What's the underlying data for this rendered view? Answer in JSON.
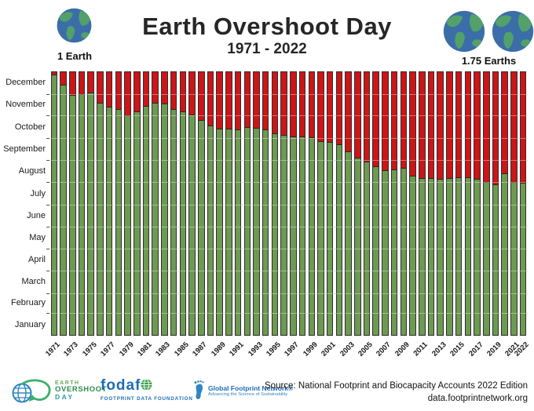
{
  "header": {
    "title": "Earth Overshoot Day",
    "subtitle": "1971 - 2022",
    "left_earths_label": "1 Earth",
    "right_earths_label": "1.75 Earths"
  },
  "chart_data": {
    "type": "bar",
    "stacked": true,
    "title": "Earth Overshoot Day 1971 - 2022",
    "description": "Stacked bars per year: green = days of the year before Earth Overshoot Day, red = overshoot days after it",
    "year_start": 1971,
    "year_end": 2022,
    "dates": [
      "Dec 25",
      "Dec 10",
      "Nov 26",
      "Nov 27",
      "Nov 30",
      "Nov 16",
      "Nov 10",
      "Nov 7",
      "Oct 29",
      "Nov 4",
      "Nov 11",
      "Nov 15",
      "Nov 14",
      "Nov 7",
      "Nov 4",
      "Oct 30",
      "Oct 23",
      "Oct 15",
      "Oct 11",
      "Oct 11",
      "Oct 10",
      "Oct 13",
      "Oct 12",
      "Oct 10",
      "Oct 4",
      "Oct 2",
      "Sep 30",
      "Sep 30",
      "Sep 29",
      "Sep 23",
      "Sep 22",
      "Sep 19",
      "Sep 9",
      "Sep 1",
      "Aug 26",
      "Aug 20",
      "Aug 14",
      "Aug 15",
      "Aug 18",
      "Aug 7",
      "Aug 4",
      "Aug 4",
      "Aug 3",
      "Aug 4",
      "Aug 5",
      "Aug 5",
      "Aug 2",
      "Jul 29",
      "Jul 26",
      "Aug 10",
      "Jul 29",
      "Jul 28"
    ],
    "day_of_year": [
      359,
      344,
      330,
      331,
      334,
      320,
      314,
      311,
      302,
      308,
      315,
      319,
      318,
      311,
      308,
      303,
      296,
      288,
      284,
      284,
      283,
      286,
      285,
      283,
      277,
      275,
      273,
      273,
      272,
      266,
      265,
      262,
      252,
      244,
      238,
      232,
      226,
      227,
      230,
      219,
      216,
      216,
      215,
      216,
      217,
      217,
      214,
      210,
      207,
      222,
      210,
      209
    ],
    "days_in_year": 365,
    "y_tick_labels": [
      "January",
      "February",
      "March",
      "April",
      "May",
      "June",
      "July",
      "August",
      "September",
      "October",
      "November",
      "December"
    ],
    "x_tick_labels": [
      "1971",
      "1973",
      "1975",
      "1977",
      "1979",
      "1981",
      "1983",
      "1985",
      "1987",
      "1989",
      "1991",
      "1993",
      "1995",
      "1997",
      "1999",
      "2001",
      "2003",
      "2005",
      "2007",
      "2009",
      "2011",
      "2013",
      "2015",
      "2017",
      "2019",
      "2021",
      "2022"
    ],
    "colors": {
      "within_budget": "#6d9a51",
      "overshoot": "#cc1517",
      "bar_border": "#2e2e2e"
    },
    "grid": true,
    "legend_position": "none"
  },
  "footer": {
    "eod_logo": {
      "line1": "EARTH",
      "line2": "OVERSHOOT",
      "line3": "DAY"
    },
    "fodafo_logo": {
      "name": "fodaf",
      "subtitle": "FOOTPRINT DATA FOUNDATION"
    },
    "gfn_logo": {
      "name": "Global Footprint Network®",
      "tagline": "Advancing the Science of Sustainability"
    },
    "source_line1": "Source: National Footprint and Biocapacity Accounts 2022 Edition",
    "source_line2": "data.footprintnetwork.org"
  }
}
